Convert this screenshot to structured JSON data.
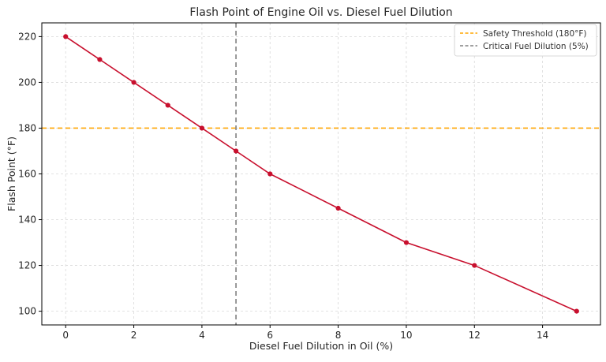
{
  "chart_data": {
    "type": "line",
    "title": "Flash Point of Engine Oil vs. Diesel Fuel Dilution",
    "xlabel": "Diesel Fuel Dilution in Oil (%)",
    "ylabel": "Flash Point (°F)",
    "xlim": [
      -0.7,
      15.7
    ],
    "ylim": [
      94,
      226
    ],
    "x_ticks": [
      0,
      2,
      4,
      6,
      8,
      10,
      12,
      14
    ],
    "y_ticks": [
      100,
      120,
      140,
      160,
      180,
      200,
      220
    ],
    "grid": true,
    "legend_position": "top-right",
    "series": [
      {
        "x": [
          0,
          1,
          2,
          3,
          4,
          5,
          6,
          8,
          10,
          12,
          15
        ],
        "values": [
          220,
          210,
          200,
          190,
          180,
          170,
          160,
          145,
          130,
          120,
          100
        ],
        "color": "#c8102e",
        "marker": "circle"
      }
    ],
    "reference_lines": [
      {
        "name": "Safety Threshold (180°F)",
        "orientation": "horizontal",
        "value": 180,
        "color": "#ffa500",
        "style": "dashed"
      },
      {
        "name": "Critical Fuel Dilution (5%)",
        "orientation": "vertical",
        "value": 5,
        "color": "#808080",
        "style": "dashed"
      }
    ]
  }
}
